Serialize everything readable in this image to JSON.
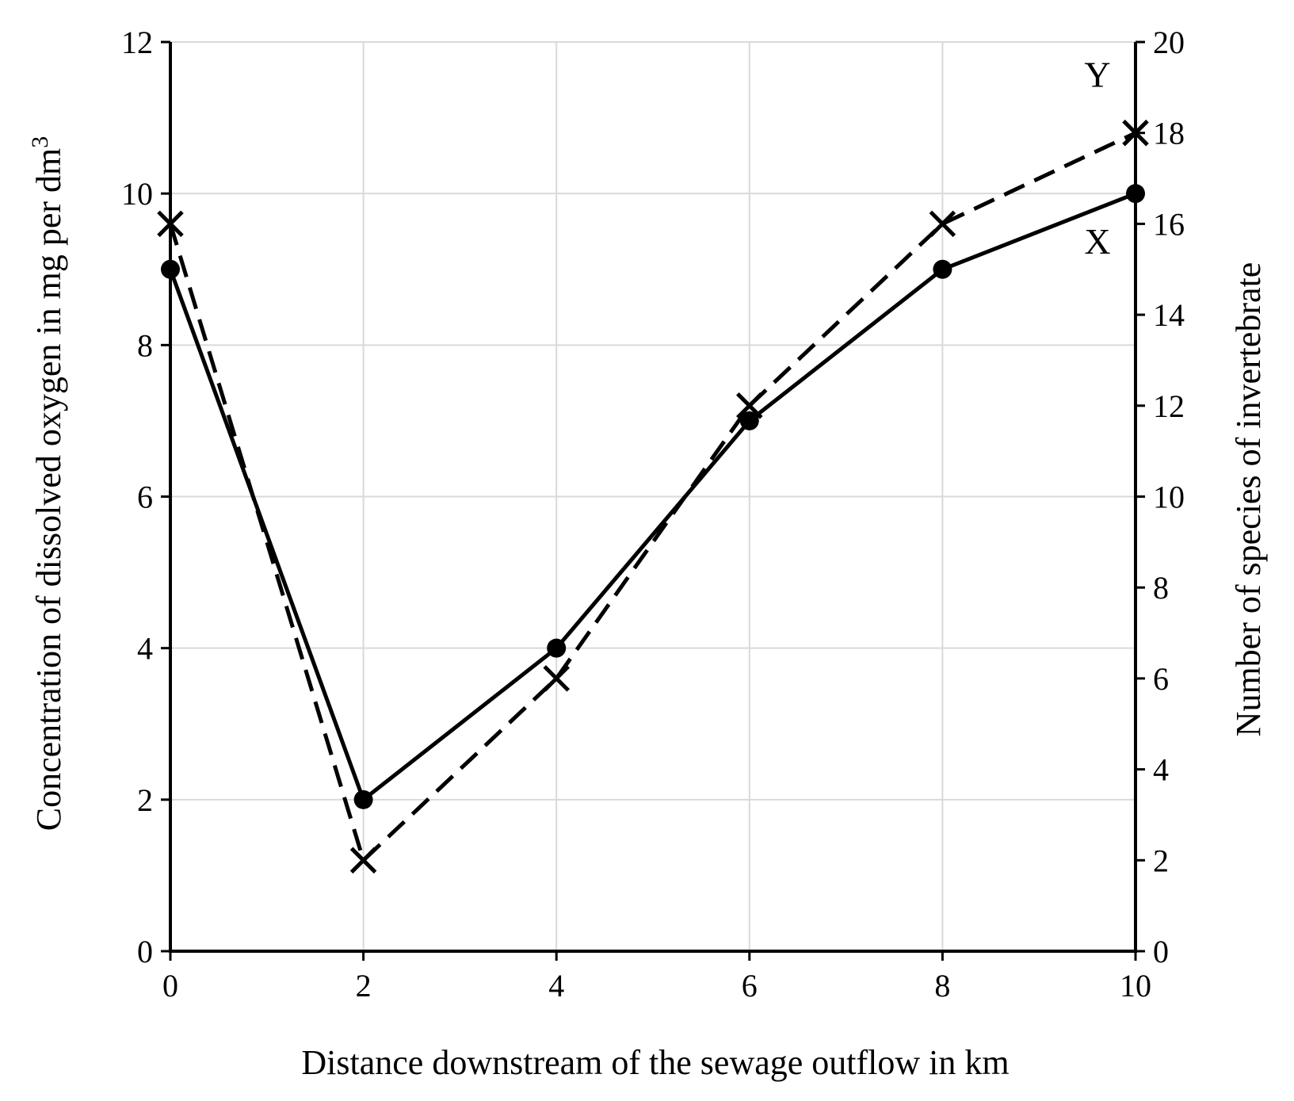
{
  "chart_data": {
    "type": "line",
    "xlabel": "Distance downstream of the sewage outflow in km",
    "ylabel_left_text": "Concentration of dissolved oxygen in mg per dm",
    "ylabel_left_superscript": "3",
    "ylabel_right": "Number of species of invertebrate",
    "x": [
      0,
      2,
      4,
      6,
      8,
      10
    ],
    "x_ticks": [
      "0",
      "2",
      "4",
      "6",
      "8",
      "10"
    ],
    "xlim": [
      0,
      10
    ],
    "ylim_left": [
      0,
      12
    ],
    "y_left_ticks": [
      "0",
      "2",
      "4",
      "6",
      "8",
      "10",
      "12"
    ],
    "ylim_right": [
      0,
      20
    ],
    "y_right_ticks": [
      "0",
      "2",
      "4",
      "6",
      "8",
      "10",
      "12",
      "14",
      "16",
      "18",
      "20"
    ],
    "grid": true,
    "series": [
      {
        "name": "X",
        "axis": "left",
        "values": [
          9,
          2,
          4,
          7,
          9,
          10
        ],
        "line_style": "solid",
        "marker": "circle",
        "color": "#000000"
      },
      {
        "name": "Y",
        "axis": "right",
        "values": [
          16,
          2,
          6,
          12,
          16,
          18
        ],
        "line_style": "dashed",
        "marker": "x",
        "color": "#000000"
      }
    ]
  }
}
